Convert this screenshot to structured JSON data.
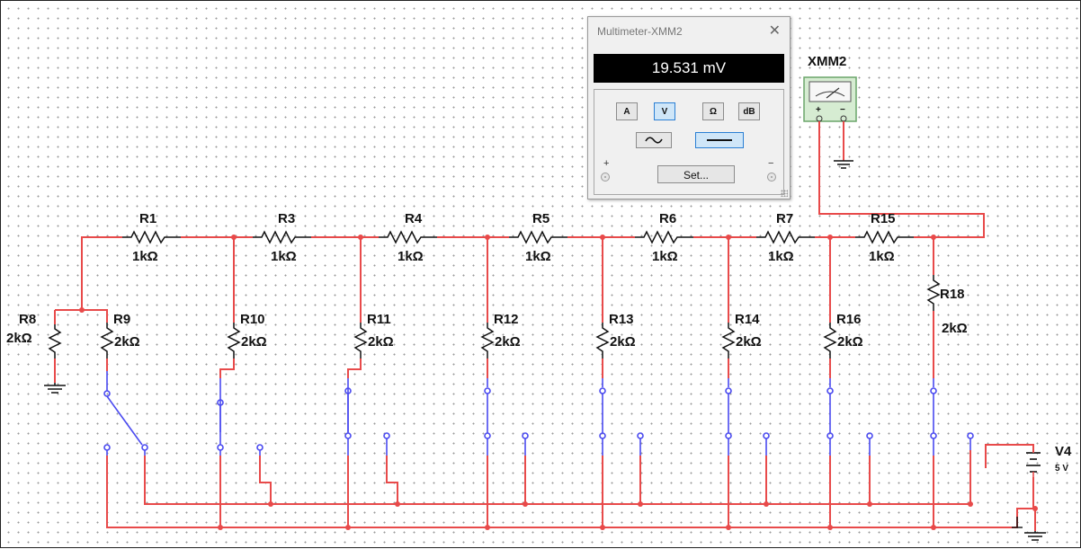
{
  "multimeter": {
    "title": "Multimeter-XMM2",
    "reading": "19.531 mV",
    "buttons": [
      "A",
      "V",
      "Ω",
      "dB"
    ],
    "active_button": "V",
    "active_wave": "dc",
    "set_label": "Set...",
    "plus_label": "+",
    "minus_label": "−"
  },
  "instrument": {
    "label": "XMM2",
    "plus": "+",
    "minus": "−"
  },
  "resistors_series": [
    {
      "name": "R1",
      "value": "1kΩ"
    },
    {
      "name": "R3",
      "value": "1kΩ"
    },
    {
      "name": "R4",
      "value": "1kΩ"
    },
    {
      "name": "R5",
      "value": "1kΩ"
    },
    {
      "name": "R6",
      "value": "1kΩ"
    },
    {
      "name": "R7",
      "value": "1kΩ"
    },
    {
      "name": "R15",
      "value": "1kΩ"
    }
  ],
  "resistors_shunt": [
    {
      "name": "R8",
      "value": "2kΩ"
    },
    {
      "name": "R9",
      "value": "2kΩ"
    },
    {
      "name": "R10",
      "value": "2kΩ"
    },
    {
      "name": "R11",
      "value": "2kΩ"
    },
    {
      "name": "R12",
      "value": "2kΩ"
    },
    {
      "name": "R13",
      "value": "2kΩ"
    },
    {
      "name": "R14",
      "value": "2kΩ"
    },
    {
      "name": "R16",
      "value": "2kΩ"
    },
    {
      "name": "R18",
      "value": "2kΩ"
    }
  ],
  "source": {
    "name": "V4",
    "value": "5 V"
  },
  "colors": {
    "wire": "#e84a4a",
    "switch_wire": "#4a4af0",
    "component": "#111111",
    "display_bg": "#000000",
    "active_button": "#cfe6f8",
    "instrument_body": "#d6ecd2"
  }
}
